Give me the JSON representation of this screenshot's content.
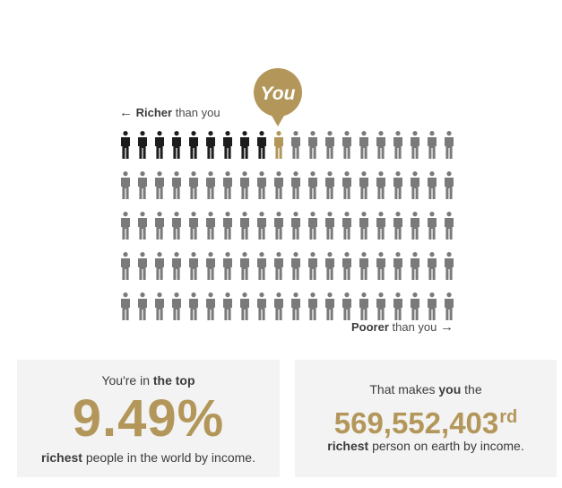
{
  "legend": {
    "richer_arrow": "←",
    "richer_bold": "Richer",
    "richer_rest": " than you",
    "poorer_bold": "Poorer",
    "poorer_rest": " than you",
    "poorer_arrow": "→"
  },
  "marker": {
    "label": "You"
  },
  "people_grid": {
    "rows": 5,
    "cols": 20,
    "richer_count": 9,
    "you_position": 10,
    "colors": {
      "richer": "#1d1d1d",
      "you": "#b3975a",
      "poorer": "#7a7a7a",
      "marker": "#b3975a"
    }
  },
  "card_left": {
    "line1_prefix": "You're in ",
    "line1_bold": "the top",
    "percent": "9.49%",
    "line3_bold": "richest",
    "line3_rest": " people in the world by income."
  },
  "card_right": {
    "line1_prefix": "That makes ",
    "line1_bold": "you",
    "line1_suffix": " the",
    "rank_number": "569,552,403",
    "rank_suffix": "rd",
    "line3_bold": "richest",
    "line3_rest": " person on earth by income."
  }
}
